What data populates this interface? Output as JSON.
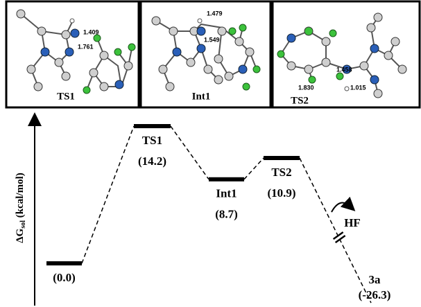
{
  "chart_data": {
    "type": "energy-profile",
    "categories": [
      null,
      "TS1",
      "Int1",
      "TS2",
      "3a"
    ],
    "values": [
      0.0,
      14.2,
      8.7,
      10.9,
      -26.3
    ],
    "value_labels": [
      "(0.0)",
      "(14.2)",
      "(8.7)",
      "(10.9)",
      "(-26.3)"
    ],
    "y_label": {
      "symbol": "ΔG",
      "subscript": "sol",
      "unit": "(kcal/mol)"
    },
    "annotation": "HF",
    "color": "#000000"
  },
  "panels": [
    {
      "label": "TS1",
      "bond_lengths": [
        "1.409",
        "1.761"
      ]
    },
    {
      "label": "Int1",
      "bond_lengths": [
        "1.479",
        "1.549"
      ]
    },
    {
      "label": "TS2",
      "bond_lengths": [
        "1.458",
        "1.830",
        "1.015"
      ]
    }
  ]
}
